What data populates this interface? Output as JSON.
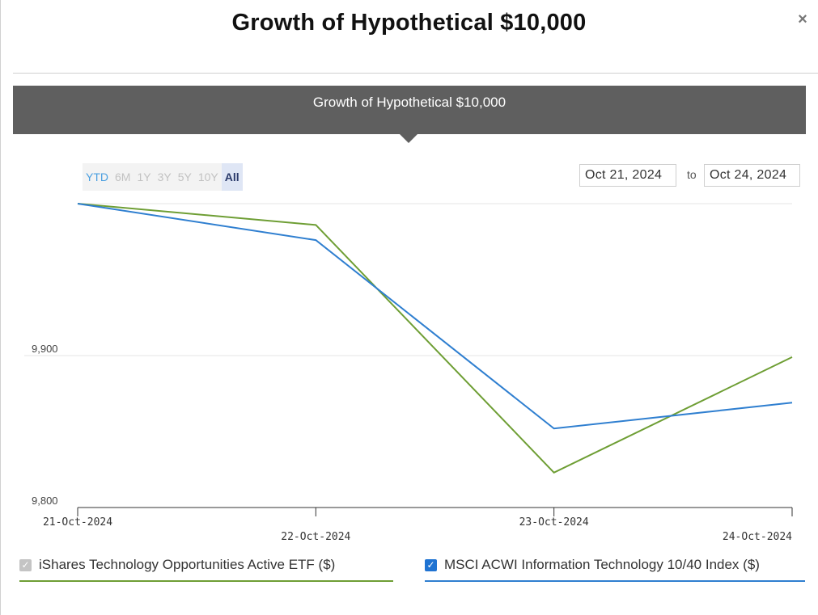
{
  "modal": {
    "title": "Growth of Hypothetical $10,000",
    "close_label": "×"
  },
  "banner": {
    "title": "Growth of Hypothetical $10,000"
  },
  "range_buttons": [
    {
      "label": "YTD"
    },
    {
      "label": "6M"
    },
    {
      "label": "1Y"
    },
    {
      "label": "3Y"
    },
    {
      "label": "5Y"
    },
    {
      "label": "10Y"
    },
    {
      "label": "All",
      "active": true
    }
  ],
  "date_range": {
    "from": "Oct 21, 2024",
    "separator": "to",
    "to": "Oct 24, 2024"
  },
  "colors": {
    "etf": "#6e9e34",
    "index": "#2f7fd0",
    "banner": "#5f5f5f"
  },
  "chart_data": {
    "type": "line",
    "title": "Growth of Hypothetical $10,000",
    "categories": [
      "21-Oct-2024",
      "22-Oct-2024",
      "23-Oct-2024",
      "24-Oct-2024"
    ],
    "ylim": [
      9800,
      10000
    ],
    "yticks": [
      9800,
      9900
    ],
    "ytick_labels": [
      "9,800",
      "9,900"
    ],
    "grid": true,
    "series": [
      {
        "name": "iShares Technology Opportunities Active ETF ($)",
        "values": [
          10000,
          9986,
          9823,
          9899
        ],
        "color": "#6e9e34"
      },
      {
        "name": "MSCI ACWI Information Technology 10/40 Index ($)",
        "values": [
          10000,
          9976,
          9852,
          9869
        ],
        "color": "#2f7fd0"
      }
    ]
  },
  "legend": [
    {
      "label": "iShares Technology Opportunities Active ETF ($)",
      "checked": true
    },
    {
      "label": "MSCI ACWI Information Technology 10/40 Index ($)",
      "checked": true
    }
  ]
}
